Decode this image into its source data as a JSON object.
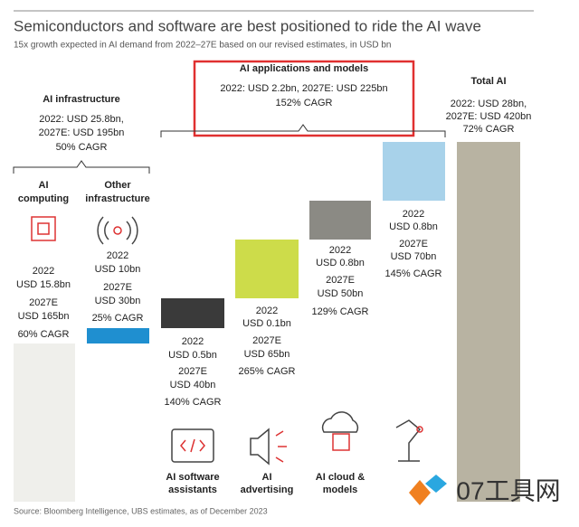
{
  "header": {
    "title": "Semiconductors and software are best positioned to ride the AI wave",
    "subtitle": "15x growth expected in AI demand from 2022–27E based on our revised estimates, in USD bn"
  },
  "groups": {
    "infrastructure": {
      "heading": "AI infrastructure",
      "lines": [
        "2022: USD 25.8bn,",
        "2027E: USD 195bn",
        "50% CAGR"
      ]
    },
    "applications": {
      "heading": "AI applications and models",
      "lines": [
        "2022: USD 2.2bn, 2027E: USD 225bn",
        "152% CAGR"
      ]
    },
    "total": {
      "heading": "Total AI",
      "lines": [
        "2022: USD 28bn,",
        "2027E: USD 420bn",
        "72% CAGR"
      ]
    }
  },
  "segments": [
    {
      "label": [
        "AI",
        "computing"
      ],
      "lines": [
        "2022",
        "USD 15.8bn",
        "2027E",
        "USD 165bn",
        "60% CAGR"
      ]
    },
    {
      "label": [
        "Other",
        "infrastructure"
      ],
      "lines": [
        "2022",
        "USD 10bn",
        "2027E",
        "USD 30bn",
        "25% CAGR"
      ]
    },
    {
      "label": [
        "AI software",
        "assistants"
      ],
      "lines": [
        "2022",
        "USD 0.5bn",
        "2027E",
        "USD 40bn",
        "140% CAGR"
      ]
    },
    {
      "label": [
        "AI",
        "advertising"
      ],
      "lines": [
        "2022",
        "USD 0.1bn",
        "2027E",
        "USD 65bn",
        "265% CAGR"
      ]
    },
    {
      "label": [
        "AI cloud &",
        "models"
      ],
      "lines": [
        "2022",
        "USD 0.8bn",
        "2027E",
        "USD 50bn",
        "129% CAGR"
      ]
    },
    {
      "lines": [
        "2022",
        "USD 0.8bn",
        "2027E",
        "USD 70bn",
        "145% CAGR"
      ]
    }
  ],
  "footer": {
    "source": "Source: Bloomberg Intelligence, UBS estimates, as of December 2023"
  },
  "watermark": "07工具网"
}
